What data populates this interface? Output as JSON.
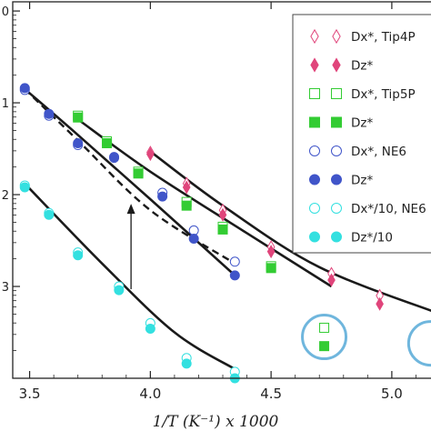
{
  "chart_data": {
    "type": "scatter",
    "title": "",
    "xlabel": "1/T (K⁻¹) x 1000",
    "ylabel": "",
    "xlim": [
      3.43,
      5.2
    ],
    "ylim": [
      -3.0,
      1.1
    ],
    "ylog": true,
    "grid": false,
    "legend_position": "top-right",
    "x_ticks": [
      "3.5",
      "4.0",
      "4.5",
      "5.0"
    ],
    "y_ticks": [
      {
        "value": 1,
        "label": "0"
      },
      {
        "value": 0,
        "label": "1"
      },
      {
        "value": -1,
        "label": "2"
      },
      {
        "value": -2,
        "label": "3"
      }
    ],
    "series": [
      {
        "name": "Dx*, Tip4P",
        "marker": "diamond",
        "filled": false,
        "color": "#e0457b",
        "x": [
          4.0,
          4.15,
          4.3,
          4.5,
          4.75,
          4.95
        ],
        "y": [
          -0.54,
          -0.88,
          -1.17,
          -1.57,
          -1.86,
          -2.1
        ]
      },
      {
        "name": "Dz*",
        "marker": "diamond",
        "filled": true,
        "color": "#e0457b",
        "x": [
          4.0,
          4.15,
          4.3,
          4.5,
          4.75,
          4.95
        ],
        "y": [
          -0.56,
          -0.92,
          -1.22,
          -1.62,
          -1.93,
          -2.19
        ]
      },
      {
        "name": "Dx*, Tip5P",
        "marker": "square",
        "filled": false,
        "color": "#33cc33",
        "x": [
          3.7,
          3.82,
          3.95,
          4.15,
          4.3,
          4.5,
          4.72
        ],
        "y": [
          -0.14,
          -0.42,
          -0.75,
          -1.08,
          -1.35,
          -1.78,
          -2.45
        ]
      },
      {
        "name": "Dz*",
        "marker": "square",
        "filled": true,
        "color": "#33cc33",
        "x": [
          3.7,
          3.82,
          3.95,
          4.15,
          4.3,
          4.5,
          4.72
        ],
        "y": [
          -0.16,
          -0.44,
          -0.77,
          -1.12,
          -1.38,
          -1.8,
          -2.65
        ]
      },
      {
        "name": "Dx*, NE6",
        "marker": "circle",
        "filled": false,
        "color": "#4055c9",
        "x": [
          3.48,
          3.58,
          3.7,
          3.85,
          4.05,
          4.18,
          4.35
        ],
        "y": [
          0.14,
          -0.14,
          -0.46,
          -0.6,
          -0.98,
          -1.39,
          -1.73
        ]
      },
      {
        "name": "Dz*",
        "marker": "circle",
        "filled": true,
        "color": "#4055c9",
        "x": [
          3.48,
          3.58,
          3.7,
          3.85,
          4.05,
          4.18,
          4.35
        ],
        "y": [
          0.16,
          -0.12,
          -0.44,
          -0.59,
          -1.02,
          -1.48,
          -1.88
        ]
      },
      {
        "name": "Dx*/10, NE6",
        "marker": "circle",
        "filled": false,
        "color": "#33e0e0",
        "x": [
          3.48,
          3.58,
          3.7,
          3.87,
          4.0,
          4.15,
          4.35
        ],
        "y": [
          -0.9,
          -1.2,
          -1.63,
          -2.0,
          -2.4,
          -2.78,
          -2.93
        ]
      },
      {
        "name": "Dz*/10",
        "marker": "circle",
        "filled": true,
        "color": "#33e0e0",
        "x": [
          3.48,
          3.58,
          3.7,
          3.87,
          4.0,
          4.15,
          4.35
        ],
        "y": [
          -0.92,
          -1.22,
          -1.66,
          -2.04,
          -2.46,
          -2.84,
          -3.0
        ]
      }
    ],
    "fit_lines": [
      {
        "style": "solid",
        "x": [
          3.48,
          3.7,
          4.0,
          4.35
        ],
        "y": [
          0.15,
          -0.35,
          -1.05,
          -1.88
        ]
      },
      {
        "style": "dashed",
        "x": [
          3.48,
          3.7,
          4.0,
          4.35
        ],
        "y": [
          0.15,
          -0.41,
          -1.17,
          -1.75
        ]
      },
      {
        "style": "solid",
        "x": [
          3.7,
          4.0,
          4.4,
          4.75
        ],
        "y": [
          -0.18,
          -0.75,
          -1.42,
          -2.0
        ]
      },
      {
        "style": "solid",
        "x": [
          4.0,
          4.3,
          4.7,
          5.2
        ],
        "y": [
          -0.53,
          -1.12,
          -1.79,
          -2.3
        ]
      },
      {
        "style": "solid",
        "x": [
          3.48,
          3.8,
          4.1,
          4.35
        ],
        "y": [
          -0.88,
          -1.75,
          -2.5,
          -2.9
        ]
      }
    ],
    "annotation_arrow": {
      "x": 3.92,
      "y_from": -2.03,
      "y_to": -1.12
    },
    "highlight_circles": [
      {
        "x": 4.72,
        "y": -2.55
      },
      {
        "x": 5.16,
        "y": -2.62
      }
    ]
  }
}
